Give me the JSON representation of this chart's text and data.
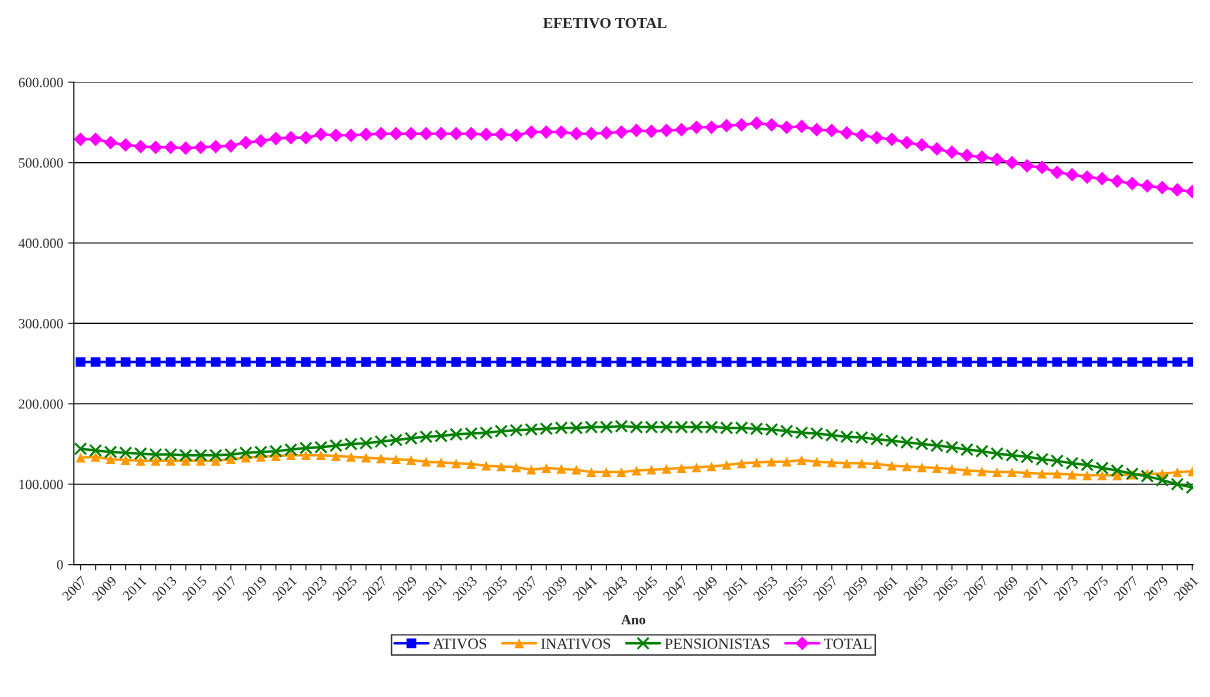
{
  "chart_data": {
    "type": "line",
    "title": "EFETIVO TOTAL",
    "xlabel": "Ano",
    "categories": [
      "2007",
      null,
      "2009",
      null,
      "2011",
      null,
      "2013",
      null,
      "2015",
      null,
      "2017",
      null,
      "2019",
      null,
      "2021",
      null,
      "2023",
      null,
      "2025",
      null,
      "2027",
      null,
      "2029",
      null,
      "2031",
      null,
      "2033",
      null,
      "2035",
      null,
      "2037",
      null,
      "2039",
      null,
      "2041",
      null,
      "2043",
      null,
      "2045",
      null,
      "2047",
      null,
      "2049",
      null,
      "2051",
      null,
      "2053",
      null,
      "2055",
      null,
      "2057",
      null,
      "2059",
      null,
      "2061",
      null,
      "2063",
      null,
      "2065",
      null,
      "2067",
      null,
      "2069",
      null,
      "2071",
      null,
      "2073",
      null,
      "2075",
      null,
      "2077",
      null,
      "2079",
      null,
      "2081"
    ],
    "series": [
      {
        "name": "ATIVOS",
        "color": "#0000ff",
        "marker": "square",
        "values": [
          252000,
          252000,
          252000,
          252000,
          252000,
          252000,
          252000,
          252000,
          252000,
          252000,
          252000,
          252000,
          252000,
          252000,
          252000,
          252000,
          252000,
          252000,
          252000,
          252000,
          252000,
          252000,
          252000,
          252000,
          252000,
          252000,
          252000,
          252000,
          252000,
          252000,
          252000,
          252000,
          252000,
          252000,
          252000,
          252000,
          252000,
          252000,
          252000,
          252000,
          252000,
          252000,
          252000,
          252000,
          252000,
          252000,
          252000,
          252000,
          252000,
          252000,
          252000,
          252000,
          252000,
          252000,
          252000,
          252000,
          252000,
          252000,
          252000,
          252000,
          252000,
          252000,
          252000,
          252000,
          252000,
          252000,
          252000,
          252000,
          252000,
          252000,
          252000,
          252000,
          252000,
          252000,
          252000
        ]
      },
      {
        "name": "INATIVOS",
        "color": "#ff9900",
        "marker": "triangle",
        "values": [
          133000,
          134000,
          131000,
          130000,
          129000,
          129000,
          129000,
          129000,
          129000,
          129000,
          131000,
          133000,
          134000,
          135000,
          136000,
          136000,
          136000,
          135000,
          134000,
          133000,
          132000,
          131000,
          130000,
          128000,
          127000,
          126000,
          125000,
          123000,
          122000,
          121000,
          118000,
          120000,
          119000,
          118000,
          115000,
          115000,
          115000,
          117000,
          118000,
          119000,
          120000,
          121000,
          122000,
          124000,
          126000,
          127000,
          128000,
          128000,
          130000,
          128000,
          127000,
          126000,
          126000,
          125000,
          123000,
          122000,
          121000,
          120000,
          119000,
          117000,
          116000,
          115000,
          115000,
          114000,
          113000,
          113000,
          112000,
          111000,
          111000,
          111000,
          112000,
          113000,
          113000,
          115000,
          116000
        ]
      },
      {
        "name": "PENSIONISTAS",
        "color": "#008000",
        "marker": "cross",
        "values": [
          144000,
          142000,
          140000,
          139000,
          138000,
          137000,
          137000,
          136000,
          136000,
          136000,
          137000,
          139000,
          140000,
          141000,
          143000,
          145000,
          146000,
          148000,
          150000,
          151000,
          153000,
          155000,
          157000,
          159000,
          160000,
          162000,
          163000,
          164000,
          166000,
          167000,
          168000,
          169000,
          170000,
          170000,
          171000,
          171000,
          172000,
          171000,
          171000,
          171000,
          171000,
          171000,
          171000,
          170000,
          170000,
          169000,
          168000,
          166000,
          164000,
          163000,
          161000,
          159000,
          158000,
          156000,
          154000,
          152000,
          150000,
          148000,
          146000,
          143000,
          141000,
          138000,
          136000,
          134000,
          131000,
          129000,
          126000,
          124000,
          120000,
          117000,
          113000,
          110000,
          105000,
          100000,
          96000
        ]
      },
      {
        "name": "TOTAL",
        "color": "#ff00ff",
        "marker": "diamond",
        "values": [
          529000,
          529000,
          525000,
          522000,
          520000,
          519000,
          519000,
          518000,
          519000,
          520000,
          521000,
          525000,
          527000,
          530000,
          531000,
          531000,
          535000,
          534000,
          534000,
          535000,
          536000,
          536000,
          536000,
          536000,
          536000,
          536000,
          536000,
          535000,
          535000,
          534000,
          538000,
          538000,
          538000,
          536000,
          536000,
          537000,
          538000,
          540000,
          539000,
          540000,
          541000,
          544000,
          544000,
          546000,
          547000,
          549000,
          547000,
          544000,
          545000,
          541000,
          540000,
          537000,
          534000,
          531000,
          529000,
          525000,
          522000,
          517000,
          513000,
          509000,
          507000,
          504000,
          500000,
          496000,
          494000,
          488000,
          485000,
          482000,
          480000,
          477000,
          474000,
          471000,
          469000,
          466000,
          464000
        ]
      }
    ],
    "ylim": [
      0,
      600000
    ],
    "yticks": [
      0,
      {
        "value": 100000,
        "label": "100.000"
      },
      {
        "value": 200000,
        "label": "200.000"
      },
      {
        "value": 300000,
        "label": "300.000"
      },
      {
        "value": 400000,
        "label": "400.000"
      },
      {
        "value": 500000,
        "label": "500.000"
      },
      {
        "value": 600000,
        "label": "600.000"
      }
    ],
    "grid": "y",
    "legend": "bottom",
    "line_style": "solid"
  }
}
